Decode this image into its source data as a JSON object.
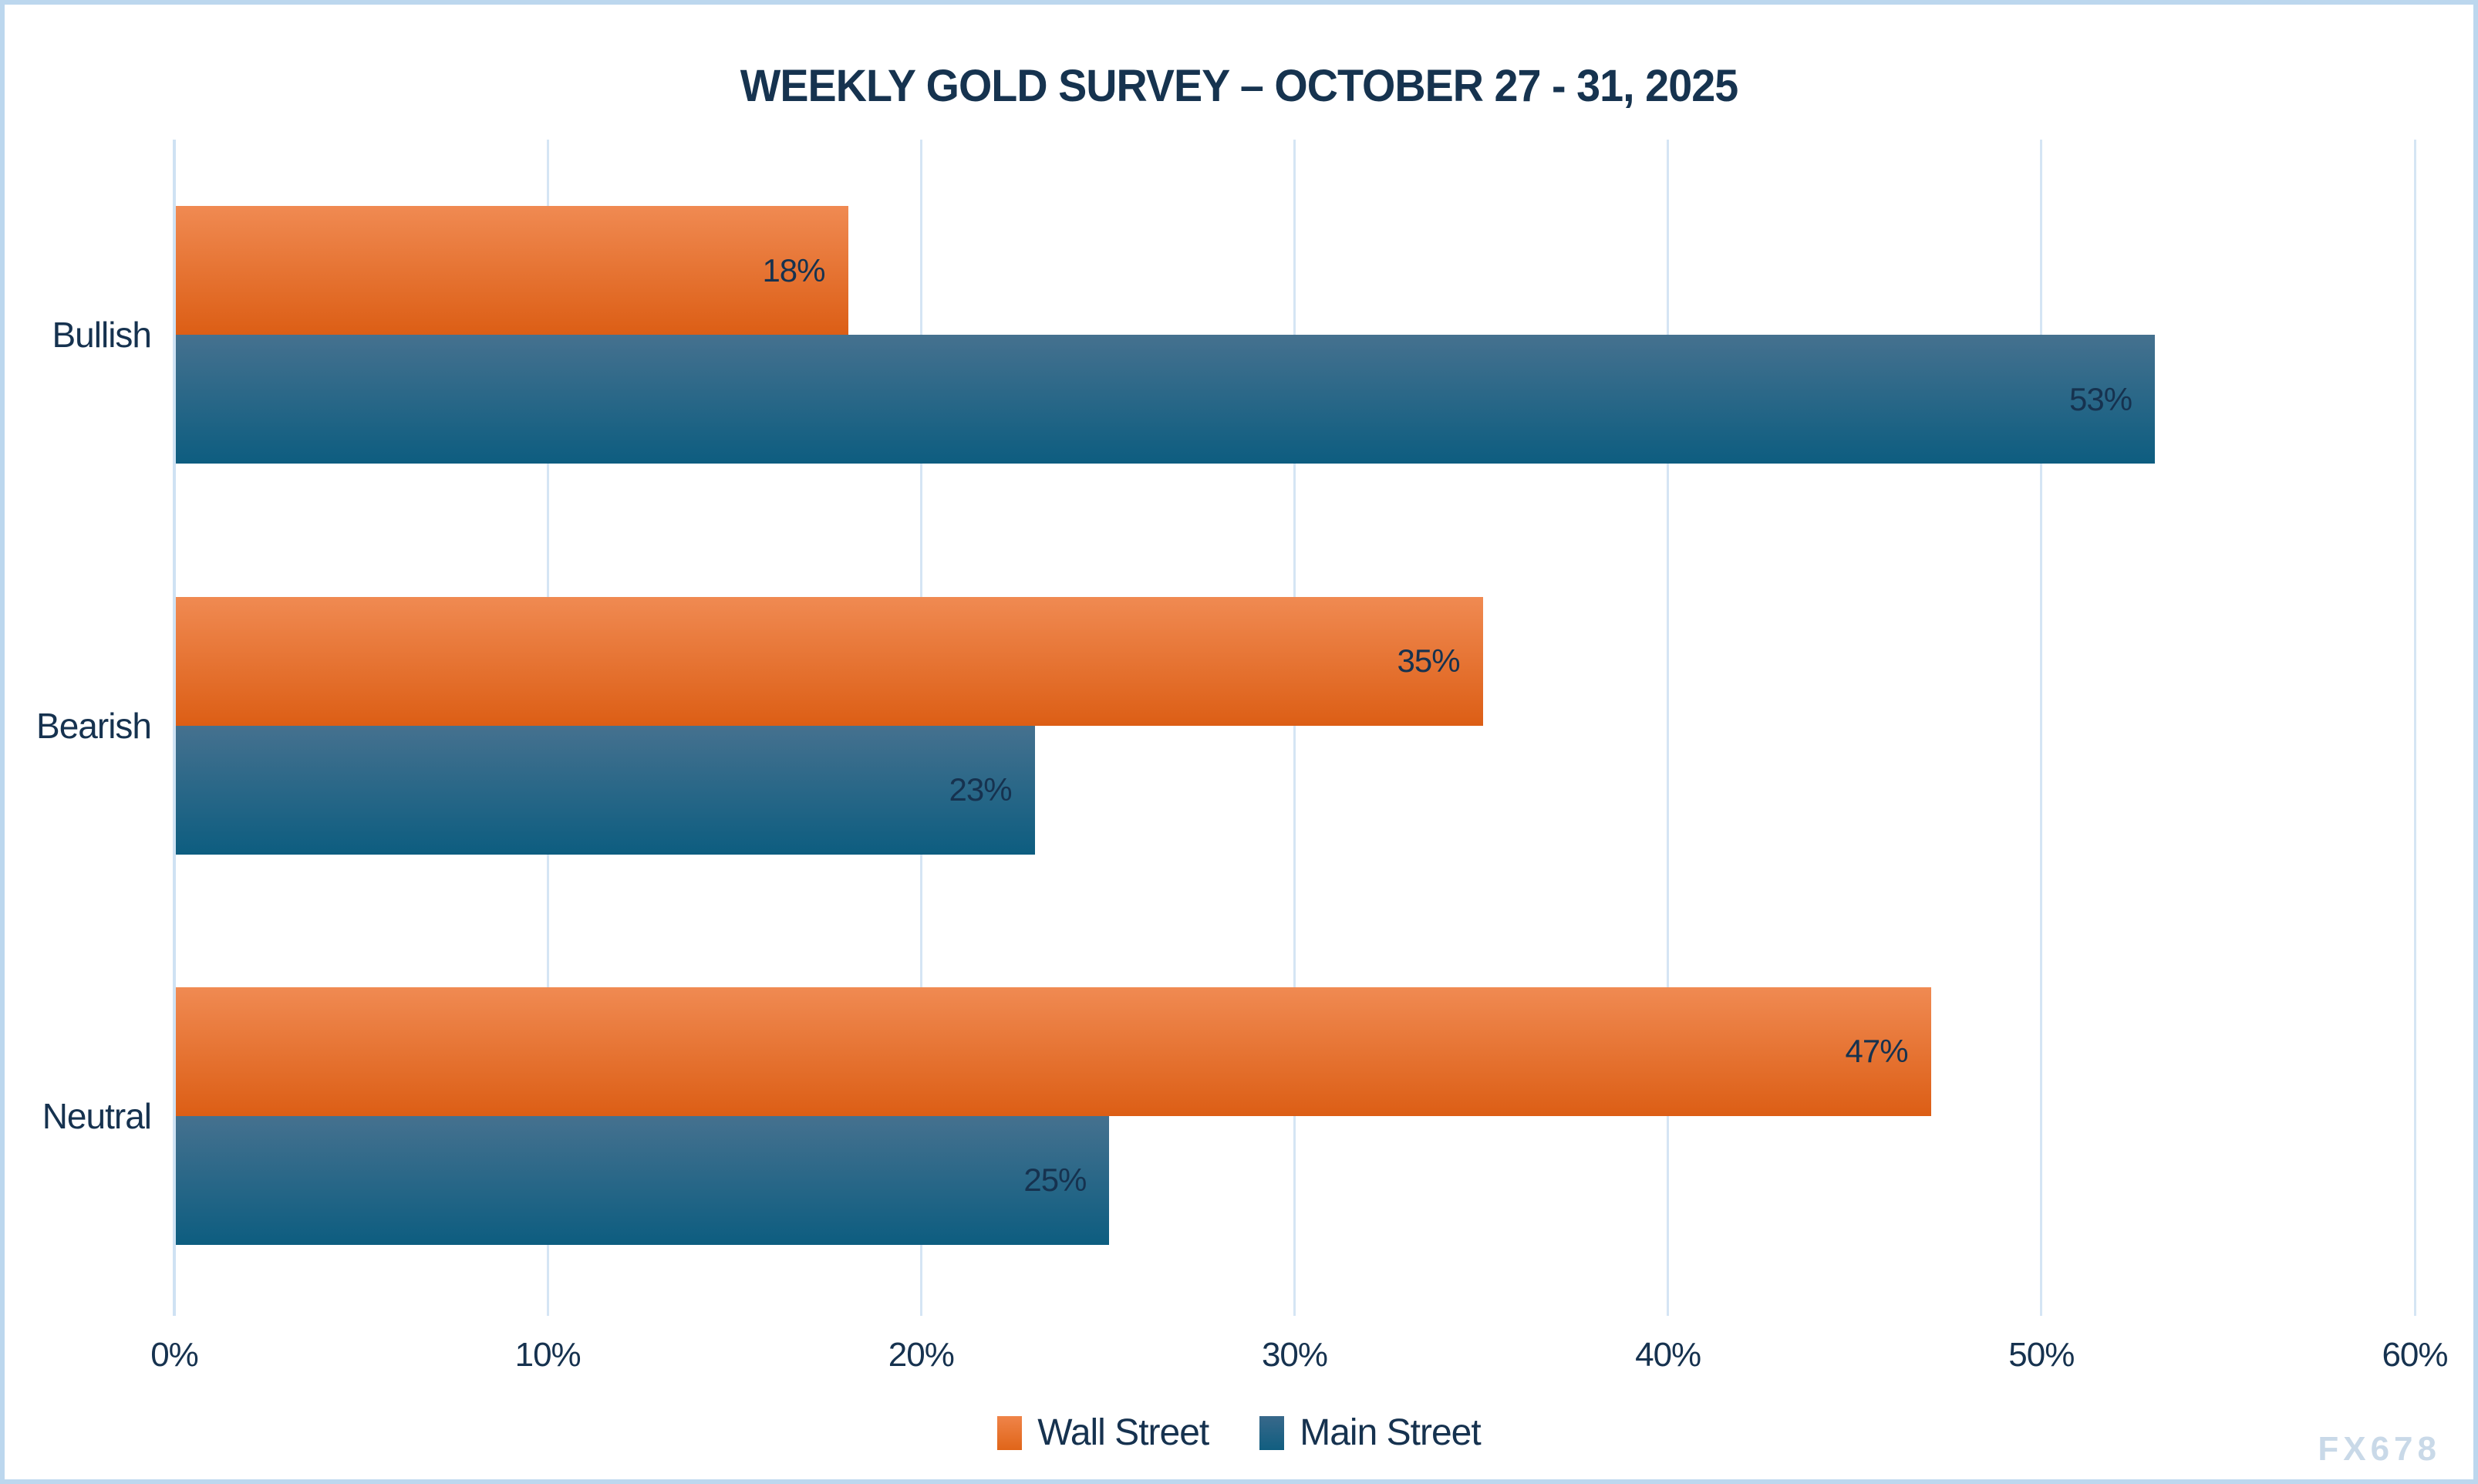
{
  "chart_data": {
    "type": "bar",
    "orientation": "horizontal",
    "title": "WEEKLY GOLD SURVEY – OCTOBER 27 - 31, 2025",
    "categories": [
      "Bullish",
      "Bearish",
      "Neutral"
    ],
    "series": [
      {
        "name": "Wall Street",
        "values": [
          18,
          35,
          47
        ],
        "labels": [
          "18%",
          "35%",
          "47%"
        ],
        "gradient_top": "#f08a52",
        "gradient_bottom": "#dc5e15"
      },
      {
        "name": "Main Street",
        "values": [
          53,
          23,
          25
        ],
        "labels": [
          "53%",
          "23%",
          "25%"
        ],
        "gradient_top": "#45718f",
        "gradient_bottom": "#0d5d80"
      }
    ],
    "xlabel": "",
    "ylabel": "",
    "xlim": [
      0,
      60
    ],
    "x_ticks": [
      "0%",
      "10%",
      "20%",
      "30%",
      "40%",
      "50%",
      "60%"
    ],
    "x_tick_values": [
      0,
      10,
      20,
      30,
      40,
      50,
      60
    ],
    "grid": "vertical-only",
    "legend_position": "bottom-center",
    "data_label_position": "inside-end",
    "watermark": "FX678",
    "colors": {
      "text": "#16324f",
      "gridline": "#d5e5f4",
      "frame_border": "#bcd7ee",
      "background": "#ffffff",
      "watermark": "#c9d9e8"
    }
  }
}
